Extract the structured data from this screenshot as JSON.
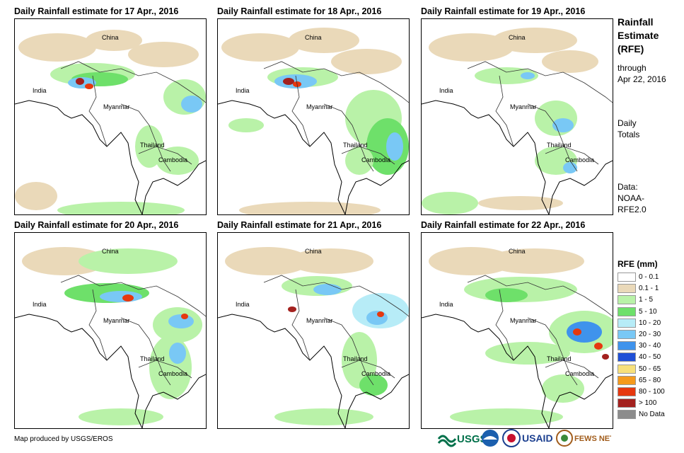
{
  "panels": [
    {
      "title": "Daily Rainfall estimate for 17 Apr., 2016",
      "labels": {
        "china": "China",
        "india": "India",
        "myanmar": "Myanmar",
        "thailand": "Thailand",
        "cambodia": "Cambodia"
      }
    },
    {
      "title": "Daily Rainfall estimate for 18 Apr., 2016",
      "labels": {
        "china": "China",
        "india": "India",
        "myanmar": "Myanmar",
        "thailand": "Thailand",
        "cambodia": "Cambodia"
      }
    },
    {
      "title": "Daily Rainfall estimate for 19 Apr., 2016",
      "labels": {
        "china": "China",
        "india": "India",
        "myanmar": "Myanmar",
        "thailand": "Thailand",
        "cambodia": "Cambodia"
      }
    },
    {
      "title": "Daily Rainfall estimate for 20 Apr., 2016",
      "labels": {
        "china": "China",
        "india": "India",
        "myanmar": "Myanmar",
        "thailand": "Thailand",
        "cambodia": "Cambodia"
      }
    },
    {
      "title": "Daily Rainfall estimate for 21 Apr., 2016",
      "labels": {
        "china": "China",
        "india": "India",
        "myanmar": "Myanmar",
        "thailand": "Thailand",
        "cambodia": "Cambodia"
      }
    },
    {
      "title": "Daily Rainfall estimate for 22 Apr., 2016",
      "labels": {
        "china": "China",
        "india": "India",
        "myanmar": "Myanmar",
        "thailand": "Thailand",
        "cambodia": "Cambodia"
      }
    }
  ],
  "sidebar": {
    "title_line1": "Rainfall",
    "title_line2": "Estimate",
    "title_line3": "(RFE)",
    "through": "through",
    "date": "Apr 22, 2016",
    "daily": "Daily",
    "totals": "Totals",
    "data_label": "Data:",
    "data_source1": "NOAA-",
    "data_source2": "RFE2.0"
  },
  "legend": {
    "title": "RFE (mm)",
    "items": [
      {
        "label": "0 - 0.1",
        "color": "#ffffff"
      },
      {
        "label": "0.1 - 1",
        "color": "#ead9b9"
      },
      {
        "label": "1 - 5",
        "color": "#b9f2a8"
      },
      {
        "label": "5 - 10",
        "color": "#6ee06a"
      },
      {
        "label": "10 - 20",
        "color": "#b7ecf7"
      },
      {
        "label": "20 - 30",
        "color": "#79c8f5"
      },
      {
        "label": "30 - 40",
        "color": "#3f93ec"
      },
      {
        "label": "40 - 50",
        "color": "#1f4fd6"
      },
      {
        "label": "50 - 65",
        "color": "#f7e07a"
      },
      {
        "label": "65 - 80",
        "color": "#f59a1c"
      },
      {
        "label": "80 - 100",
        "color": "#e6380f"
      },
      {
        "label": "> 100",
        "color": "#a3211e"
      },
      {
        "label": "No Data",
        "color": "#8c8c8c"
      }
    ]
  },
  "credit": "Map produced by USGS/EROS",
  "logos": {
    "usgs": "USGS",
    "usaid": "USAID",
    "fewsnet": "FEWS NET"
  }
}
